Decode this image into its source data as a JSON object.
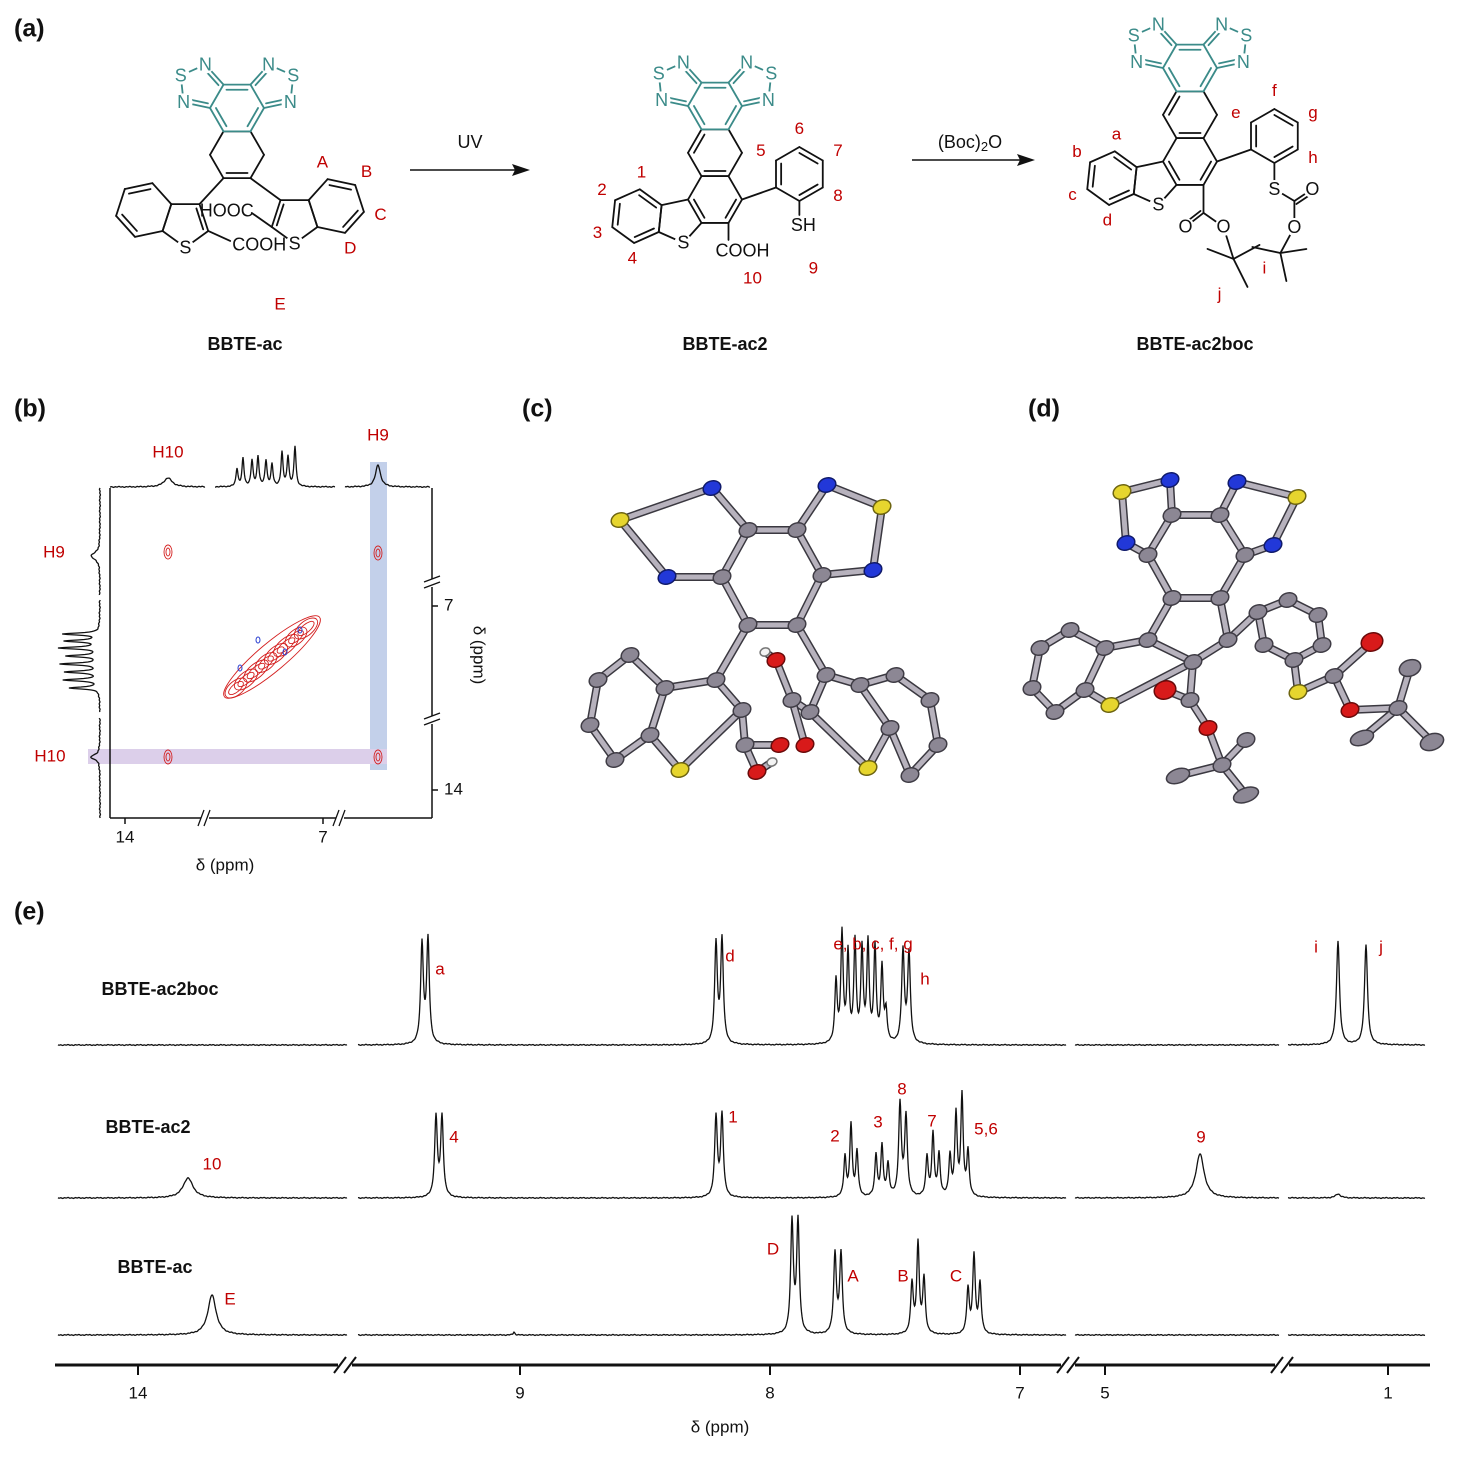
{
  "panels": [
    "(a)",
    "(b)",
    "(c)",
    "(d)",
    "(e)"
  ],
  "scheme": {
    "compounds": [
      "BBTE-ac",
      "BBTE-ac2",
      "BBTE-ac2boc"
    ],
    "steps": [
      {
        "reagent": "UV"
      },
      {
        "reagent": "(Boc)",
        "subscript": "2",
        "suffix": "O"
      }
    ],
    "bbte_ac": {
      "atoms": [
        "N",
        "S",
        "N",
        "N",
        "S",
        "N",
        "S",
        "S",
        "HOOC",
        "COOH"
      ],
      "labels": [
        "A",
        "B",
        "C",
        "D",
        "E"
      ]
    },
    "bbte_ac2": {
      "atoms": [
        "N",
        "S",
        "N",
        "N",
        "S",
        "N",
        "S",
        "SH",
        "COOH"
      ],
      "labels": [
        "1",
        "2",
        "3",
        "4",
        "5",
        "6",
        "7",
        "8",
        "9",
        "10"
      ]
    },
    "bbte_ac2boc": {
      "atoms": [
        "N",
        "S",
        "N",
        "N",
        "S",
        "N",
        "S",
        "O",
        "O",
        "S",
        "O",
        "O"
      ],
      "labels": [
        "a",
        "b",
        "c",
        "d",
        "e",
        "f",
        "g",
        "h",
        "i",
        "j"
      ]
    }
  },
  "nmr2d": {
    "top_peaks": [
      "H10",
      "H9"
    ],
    "left_peaks": [
      "H9",
      "H10"
    ],
    "xticks": [
      14,
      7
    ],
    "yticks": [
      7,
      14
    ],
    "xlabel": "δ (ppm)",
    "ylabel": "δ (ppm)"
  },
  "spectra": {
    "traces": [
      {
        "name": "BBTE-ac2boc",
        "peaks": [
          "a",
          "d",
          "e, b, c, f, g",
          "h",
          "i",
          "j"
        ]
      },
      {
        "name": "BBTE-ac2",
        "peaks": [
          "10",
          "4",
          "1",
          "2",
          "3",
          "8",
          "7",
          "5,6",
          "9"
        ]
      },
      {
        "name": "BBTE-ac",
        "peaks": [
          "E",
          "D",
          "A",
          "B",
          "C"
        ]
      }
    ],
    "xticks": [
      14,
      9,
      8,
      7,
      5,
      1
    ],
    "xlabel": "δ (ppm)"
  }
}
